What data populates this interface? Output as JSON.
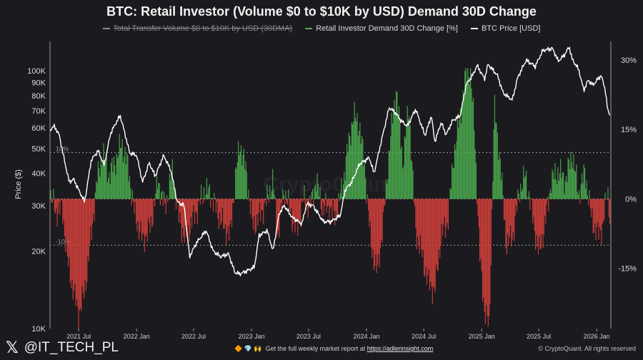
{
  "chart_data": {
    "type": "line",
    "title": "BTC: Retail Investor (Volume $0 to $10K by USD) Demand 30D Change",
    "legend": [
      {
        "label": "Total Transfer Volume $0 to $10K by USD (30DMA)",
        "color": "#8a8a8a",
        "hidden": true
      },
      {
        "label": "Retail Investor Demand 30D Change [%]",
        "color": "#4caf50"
      },
      {
        "label": "BTC Price [USD]",
        "color": "#ffffff"
      }
    ],
    "watermark": "CryptoQuant",
    "y_left": {
      "label": "Price ($)",
      "scale": "log",
      "range": [
        10000,
        130000
      ],
      "ticks": [
        10000,
        20000,
        30000,
        40000,
        50000,
        60000,
        70000,
        80000,
        90000,
        100000
      ],
      "tick_labels": [
        "10K",
        "20K",
        "30K",
        "40K",
        "50K",
        "60K",
        "70K",
        "80K",
        "90K",
        "100K"
      ]
    },
    "y_right": {
      "label": "",
      "range": [
        -28,
        34
      ],
      "ticks": [
        30,
        15,
        0,
        -15
      ],
      "tick_labels": [
        "30%",
        "15%",
        "0%",
        "-15%"
      ]
    },
    "x": {
      "range": [
        "2021-04-01",
        "2026-02-15"
      ],
      "ticks": [
        "2021-07-01",
        "2022-01-01",
        "2022-07-01",
        "2023-01-01",
        "2023-07-01",
        "2024-01-01",
        "2024-07-01",
        "2025-01-01",
        "2025-07-01",
        "2026-01-01"
      ],
      "tick_labels": [
        "2021 Jul",
        "2022 Jan",
        "2022 Jul",
        "2023 Jan",
        "2023 Jul",
        "2024 Jan",
        "2024 Jul",
        "2025 Jan",
        "2025 Jul",
        "2026 Jan"
      ]
    },
    "reference_lines": [
      {
        "value": 10,
        "label": "10%",
        "style": "dotted"
      },
      {
        "value": 0,
        "label": "",
        "style": "dotted"
      },
      {
        "value": -10,
        "label": "-10%",
        "style": "dotted"
      }
    ],
    "series": [
      {
        "name": "BTC Price [USD]",
        "axis": "left",
        "color": "#ffffff",
        "dates": [
          "2021-04-01",
          "2021-04-15",
          "2021-05-01",
          "2021-05-15",
          "2021-06-01",
          "2021-06-15",
          "2021-07-01",
          "2021-07-20",
          "2021-08-10",
          "2021-09-01",
          "2021-09-20",
          "2021-10-10",
          "2021-10-25",
          "2021-11-10",
          "2021-11-25",
          "2021-12-10",
          "2022-01-01",
          "2022-01-20",
          "2022-02-10",
          "2022-03-01",
          "2022-03-28",
          "2022-04-20",
          "2022-05-10",
          "2022-06-01",
          "2022-06-18",
          "2022-07-10",
          "2022-08-10",
          "2022-09-01",
          "2022-09-25",
          "2022-10-20",
          "2022-11-09",
          "2022-11-25",
          "2022-12-20",
          "2023-01-10",
          "2023-01-25",
          "2023-02-20",
          "2023-03-10",
          "2023-03-30",
          "2023-04-15",
          "2023-05-10",
          "2023-06-10",
          "2023-06-25",
          "2023-07-15",
          "2023-08-17",
          "2023-09-10",
          "2023-10-10",
          "2023-10-25",
          "2023-11-15",
          "2023-12-10",
          "2024-01-10",
          "2024-01-25",
          "2024-02-15",
          "2024-03-13",
          "2024-04-01",
          "2024-04-20",
          "2024-05-10",
          "2024-06-05",
          "2024-07-05",
          "2024-07-25",
          "2024-08-05",
          "2024-08-25",
          "2024-09-10",
          "2024-09-30",
          "2024-10-25",
          "2024-11-12",
          "2024-12-05",
          "2024-12-17",
          "2025-01-10",
          "2025-01-21",
          "2025-02-20",
          "2025-03-10",
          "2025-04-08",
          "2025-04-25",
          "2025-05-22",
          "2025-06-20",
          "2025-07-14",
          "2025-08-14",
          "2025-09-01",
          "2025-09-20",
          "2025-10-06",
          "2025-10-15",
          "2025-11-05",
          "2025-11-21",
          "2025-12-05",
          "2025-12-20",
          "2026-01-05",
          "2026-01-15",
          "2026-01-28",
          "2026-02-05",
          "2026-02-12"
        ],
        "values": [
          59000,
          61000,
          56000,
          46000,
          37000,
          38000,
          34500,
          31000,
          45000,
          49000,
          43000,
          57000,
          62000,
          67000,
          57000,
          48000,
          47000,
          37000,
          44000,
          39000,
          47000,
          41000,
          31000,
          30000,
          19000,
          21500,
          24000,
          20000,
          19000,
          19500,
          16500,
          16300,
          16800,
          17300,
          23000,
          24000,
          20000,
          28000,
          30000,
          27000,
          25500,
          30500,
          30000,
          26000,
          26000,
          27500,
          34500,
          37000,
          43500,
          46000,
          40000,
          52000,
          72000,
          69000,
          64000,
          61000,
          71000,
          56000,
          67000,
          53000,
          63000,
          56500,
          64000,
          67000,
          88000,
          97000,
          105000,
          93000,
          106000,
          96000,
          82000,
          77000,
          94000,
          110000,
          104000,
          120000,
          122000,
          109000,
          115000,
          124000,
          111000,
          101000,
          84000,
          92000,
          88000,
          93000,
          96000,
          85000,
          70000,
          68000
        ]
      },
      {
        "name": "Retail Investor Demand 30D Change [%]",
        "axis": "right",
        "color_pos": "#4caf50",
        "color_neg": "#d9413c",
        "dates": [
          "2021-04-01",
          "2021-04-20",
          "2021-05-10",
          "2021-05-28",
          "2021-06-15",
          "2021-07-01",
          "2021-07-20",
          "2021-08-10",
          "2021-08-28",
          "2021-09-15",
          "2021-10-05",
          "2021-10-25",
          "2021-11-15",
          "2021-12-05",
          "2021-12-25",
          "2022-01-20",
          "2022-02-15",
          "2022-03-10",
          "2022-04-01",
          "2022-04-25",
          "2022-05-15",
          "2022-06-05",
          "2022-06-25",
          "2022-07-15",
          "2022-08-05",
          "2022-08-25",
          "2022-09-15",
          "2022-10-05",
          "2022-10-25",
          "2022-11-10",
          "2022-11-25",
          "2022-12-15",
          "2023-01-05",
          "2023-01-25",
          "2023-02-15",
          "2023-03-10",
          "2023-03-25",
          "2023-04-15",
          "2023-05-05",
          "2023-05-25",
          "2023-06-15",
          "2023-07-05",
          "2023-07-25",
          "2023-08-15",
          "2023-09-05",
          "2023-09-25",
          "2023-10-15",
          "2023-11-01",
          "2023-11-20",
          "2023-12-10",
          "2023-12-28",
          "2024-01-15",
          "2024-02-05",
          "2024-02-25",
          "2024-03-15",
          "2024-04-05",
          "2024-04-25",
          "2024-05-15",
          "2024-06-05",
          "2024-06-25",
          "2024-07-15",
          "2024-08-05",
          "2024-08-25",
          "2024-09-15",
          "2024-10-05",
          "2024-10-25",
          "2024-11-10",
          "2024-11-25",
          "2024-12-10",
          "2024-12-25",
          "2025-01-10",
          "2025-01-25",
          "2025-02-10",
          "2025-03-01",
          "2025-03-20",
          "2025-04-10",
          "2025-05-01",
          "2025-05-20",
          "2025-06-10",
          "2025-07-01",
          "2025-07-20",
          "2025-08-10",
          "2025-09-01",
          "2025-09-25",
          "2025-10-15",
          "2025-11-05",
          "2025-11-25",
          "2025-12-15",
          "2026-01-05",
          "2026-01-20",
          "2026-02-05",
          "2026-02-12"
        ],
        "values": [
          1,
          -3,
          -2,
          -14,
          -20,
          -25,
          -20,
          -8,
          4,
          10,
          5,
          8,
          12,
          7,
          -3,
          -9,
          -6,
          4,
          -2,
          6,
          -4,
          -9,
          -5,
          -2,
          2,
          1,
          -3,
          -6,
          -8,
          4,
          12,
          6,
          -6,
          -4,
          -1,
          4,
          -8,
          2,
          -3,
          -7,
          0,
          -2,
          4,
          -2,
          -2,
          -4,
          2,
          10,
          18,
          16,
          6,
          -10,
          -16,
          -4,
          12,
          24,
          8,
          20,
          -7,
          -12,
          -18,
          -20,
          -8,
          -5,
          10,
          18,
          26,
          28,
          14,
          -12,
          -24,
          -28,
          20,
          8,
          -10,
          -8,
          2,
          5,
          -3,
          -12,
          -6,
          4,
          6,
          4,
          10,
          1,
          6,
          -4,
          -8,
          -6,
          2,
          -4
        ]
      }
    ]
  },
  "footer": {
    "handle": "@IT_TECH_PL",
    "x_logo": "𝕏",
    "promo_icons": "🔶 💎 🙌",
    "promo_text": "Get the full weekly market report at",
    "promo_link": "https://adlerinsight.com",
    "copyright": "© CryptoQuant. All rights reserved"
  },
  "colors": {
    "background": "#1b1a1f",
    "grid": "#8a8a8a",
    "positive": "#4caf50",
    "negative": "#d9413c",
    "price": "#ffffff"
  }
}
